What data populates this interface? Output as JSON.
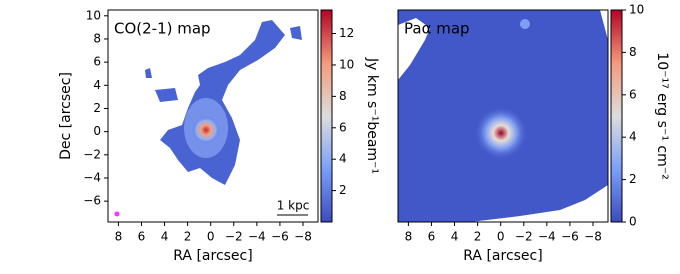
{
  "chart_data": [
    {
      "type": "image",
      "title": "CO(2-1) map",
      "xlabel": "RA [arcsec]",
      "ylabel": "Dec [arcsec]",
      "xlim": [
        8.9,
        -9.3
      ],
      "ylim": [
        -7.8,
        10.5
      ],
      "xticks": [
        8,
        6,
        4,
        2,
        0,
        {
          "value": -2,
          "label": "−2"
        },
        {
          "value": -4,
          "label": "−4"
        },
        {
          "value": -6,
          "label": "−6"
        },
        {
          "value": -8,
          "label": "−8"
        }
      ],
      "yticks": [
        {
          "value": -6,
          "label": "−6"
        },
        {
          "value": -4,
          "label": "−4"
        },
        {
          "value": -2,
          "label": "−2"
        },
        {
          "value": 0,
          "label": "0"
        },
        2,
        4,
        6,
        8,
        10
      ],
      "colorbar_label": "Jy km s⁻¹beam⁻¹",
      "clim": [
        0,
        13.5
      ],
      "cticks": [
        2,
        4,
        6,
        8,
        10,
        12
      ],
      "annotation": "1 kpc"
    },
    {
      "type": "image",
      "title": "Paα map",
      "xlabel": "RA [arcsec]",
      "xlim": [
        8.9,
        -9.3
      ],
      "ylim": [
        -7.8,
        10.5
      ],
      "xticks": [
        8,
        6,
        4,
        2,
        0,
        {
          "value": -2,
          "label": "−2"
        },
        {
          "value": -4,
          "label": "−4"
        },
        {
          "value": -6,
          "label": "−6"
        },
        {
          "value": -8,
          "label": "−8"
        }
      ],
      "colorbar_label": "10⁻¹⁷ erg s⁻¹ cm⁻²",
      "clim": [
        0,
        10
      ],
      "cticks": [
        0,
        2,
        4,
        6,
        8,
        10
      ]
    }
  ]
}
